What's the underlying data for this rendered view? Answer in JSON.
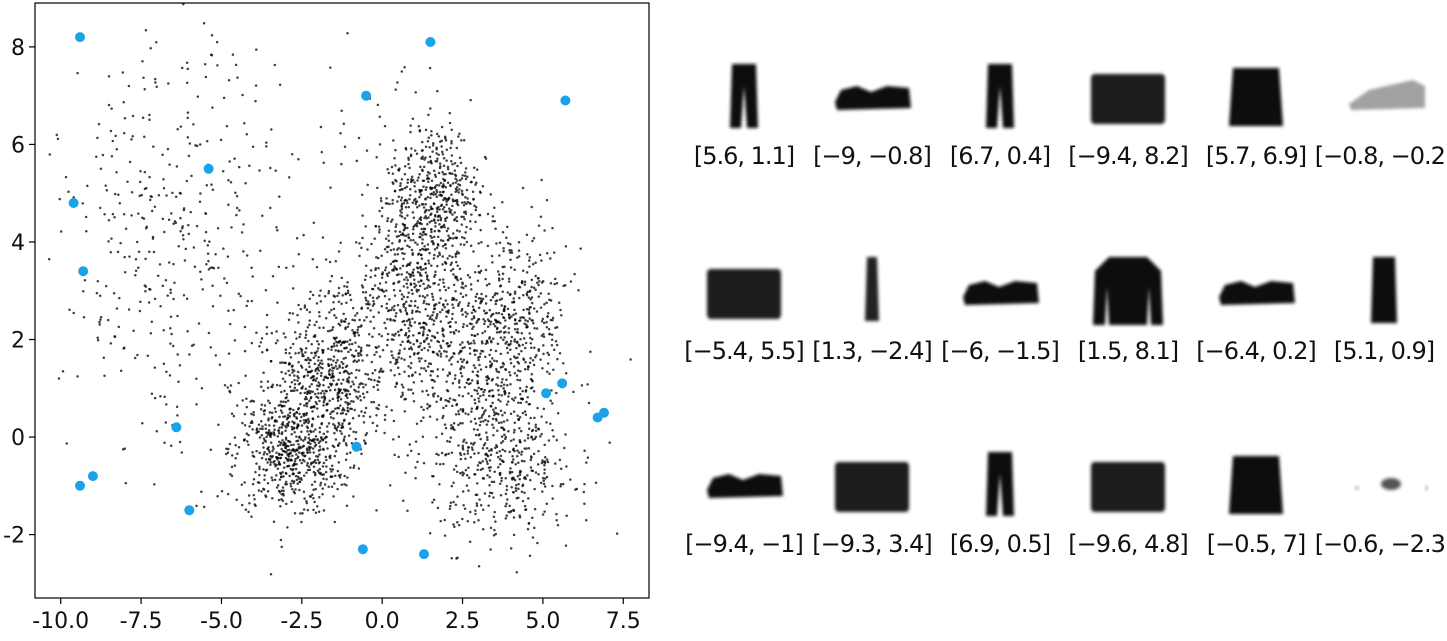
{
  "chart_data": [
    {
      "type": "scatter",
      "title": "",
      "xlabel": "",
      "ylabel": "",
      "xlim": [
        -10.8,
        8.3
      ],
      "ylim": [
        -3.3,
        8.9
      ],
      "xticks": [
        -10.0,
        -7.5,
        -5.0,
        -2.5,
        0.0,
        2.5,
        5.0,
        7.5
      ],
      "xtick_labels": [
        "-10.0",
        "-7.5",
        "-5.0",
        "-2.5",
        "0.0",
        "2.5",
        "5.0",
        "7.5"
      ],
      "yticks": [
        -2,
        0,
        2,
        4,
        6,
        8
      ],
      "ytick_labels": [
        "-2",
        "0",
        "2",
        "4",
        "6",
        "8"
      ],
      "grid": false,
      "series": [
        {
          "role": "encoded-points",
          "color": "#000000",
          "clusters": [
            {
              "center": [
                -2.2,
                0.8
              ],
              "spread": [
                0.9,
                0.9
              ],
              "count": 500
            },
            {
              "center": [
                -3.0,
                -0.4
              ],
              "spread": [
                0.8,
                0.6
              ],
              "count": 420
            },
            {
              "center": [
                -1.2,
                1.4
              ],
              "spread": [
                0.6,
                1.0
              ],
              "count": 260
            },
            {
              "center": [
                0.8,
                3.2
              ],
              "spread": [
                0.8,
                1.5
              ],
              "count": 650
            },
            {
              "center": [
                1.8,
                5.0
              ],
              "spread": [
                0.6,
                0.7
              ],
              "count": 350
            },
            {
              "center": [
                2.8,
                1.8
              ],
              "spread": [
                1.1,
                1.1
              ],
              "count": 520
            },
            {
              "center": [
                3.8,
                -0.6
              ],
              "spread": [
                1.1,
                0.8
              ],
              "count": 420
            },
            {
              "center": [
                4.3,
                2.5
              ],
              "spread": [
                0.8,
                1.0
              ],
              "count": 280
            },
            {
              "center": [
                -6.5,
                3.4
              ],
              "spread": [
                1.7,
                2.0
              ],
              "count": 300
            },
            {
              "center": [
                -5.5,
                5.5
              ],
              "spread": [
                2.5,
                1.5
              ],
              "count": 120
            }
          ]
        },
        {
          "role": "sampled-points",
          "color": "#1aa3e8",
          "points": [
            [
              5.6,
              1.1
            ],
            [
              -9,
              -0.8
            ],
            [
              6.7,
              0.4
            ],
            [
              -9.4,
              8.2
            ],
            [
              5.7,
              6.9
            ],
            [
              -0.8,
              -0.2
            ],
            [
              -5.4,
              5.5
            ],
            [
              1.3,
              -2.4
            ],
            [
              -6,
              -1.5
            ],
            [
              1.5,
              8.1
            ],
            [
              -6.4,
              0.2
            ],
            [
              5.1,
              0.9
            ],
            [
              -9.4,
              -1
            ],
            [
              -9.3,
              3.4
            ],
            [
              6.9,
              0.5
            ],
            [
              -9.6,
              4.8
            ],
            [
              -0.5,
              7
            ],
            [
              -0.6,
              -2.3
            ]
          ]
        }
      ]
    }
  ],
  "decoded_grid": {
    "cells": [
      {
        "label": "[5.6, 1.1]",
        "icon": "trousers-icon"
      },
      {
        "label": "[−9, −0.8]",
        "icon": "sneaker-icon"
      },
      {
        "label": "[6.7, 0.4]",
        "icon": "trousers-icon"
      },
      {
        "label": "[−9.4, 8.2]",
        "icon": "bag-icon"
      },
      {
        "label": "[5.7, 6.9]",
        "icon": "shirt-icon"
      },
      {
        "label": "[−0.8, −0.2]",
        "icon": "faint-sandal-icon"
      },
      {
        "label": "[−5.4, 5.5]",
        "icon": "bag-icon"
      },
      {
        "label": "[1.3, −2.4]",
        "icon": "thin-blob-icon"
      },
      {
        "label": "[−6, −1.5]",
        "icon": "sneaker-icon"
      },
      {
        "label": "[1.5, 8.1]",
        "icon": "coat-icon"
      },
      {
        "label": "[−6.4, 0.2]",
        "icon": "sneaker-icon"
      },
      {
        "label": "[5.1, 0.9]",
        "icon": "dress-icon"
      },
      {
        "label": "[−9.4, −1]",
        "icon": "sneaker-icon"
      },
      {
        "label": "[−9.3, 3.4]",
        "icon": "bag-icon"
      },
      {
        "label": "[6.9, 0.5]",
        "icon": "trousers-icon"
      },
      {
        "label": "[−9.6, 4.8]",
        "icon": "bag-icon"
      },
      {
        "label": "[−0.5, 7]",
        "icon": "shirt-icon"
      },
      {
        "label": "[−0.6, −2.3]",
        "icon": "faint-blob-icon"
      }
    ]
  }
}
